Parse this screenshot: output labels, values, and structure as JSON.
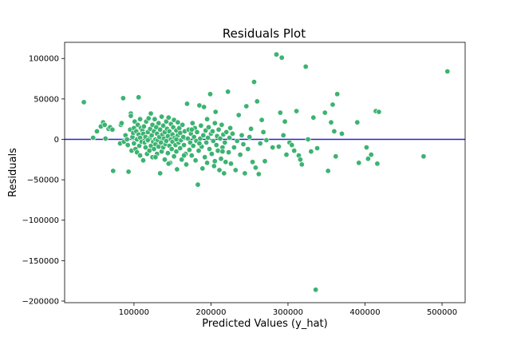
{
  "chart_data": {
    "type": "scatter",
    "title": "Residuals Plot",
    "xlabel": "Predicted Values (y_hat)",
    "ylabel": "Residuals",
    "xlim": [
      10000,
      530000
    ],
    "ylim": [
      -202000,
      120000
    ],
    "xticks": [
      100000,
      200000,
      300000,
      400000,
      500000
    ],
    "xtick_labels": [
      "100000",
      "200000",
      "300000",
      "400000",
      "500000"
    ],
    "yticks": [
      100000,
      50000,
      0,
      -50000,
      -100000,
      -150000,
      -200000
    ],
    "ytick_labels": [
      "100000",
      "50000",
      "0",
      "−50000",
      "−100000",
      "−150000",
      "−200000"
    ],
    "grid": false,
    "point_color": "#3cb371",
    "reference_line": {
      "y": 0,
      "color": "#2626c8"
    },
    "points": [
      [
        35000,
        46000
      ],
      [
        47000,
        2000
      ],
      [
        52000,
        10000
      ],
      [
        57000,
        16000
      ],
      [
        60000,
        21000
      ],
      [
        62000,
        18000
      ],
      [
        63000,
        1000
      ],
      [
        67000,
        13000
      ],
      [
        69000,
        15000
      ],
      [
        72000,
        12000
      ],
      [
        73000,
        -39000
      ],
      [
        82000,
        -5000
      ],
      [
        83000,
        18000
      ],
      [
        84000,
        20000
      ],
      [
        86000,
        51000
      ],
      [
        87000,
        -3000
      ],
      [
        89000,
        5000
      ],
      [
        91000,
        0
      ],
      [
        92000,
        -7000
      ],
      [
        93000,
        -40000
      ],
      [
        95000,
        12000
      ],
      [
        96000,
        32000
      ],
      [
        96000,
        29000
      ],
      [
        97000,
        -14000
      ],
      [
        98000,
        3000
      ],
      [
        99000,
        8000
      ],
      [
        100000,
        -5000
      ],
      [
        100000,
        14000
      ],
      [
        101000,
        22000
      ],
      [
        102000,
        -12000
      ],
      [
        103000,
        10000
      ],
      [
        104000,
        0
      ],
      [
        104000,
        -16000
      ],
      [
        105000,
        18000
      ],
      [
        106000,
        52000
      ],
      [
        106000,
        6000
      ],
      [
        107000,
        -8000
      ],
      [
        108000,
        2000
      ],
      [
        108000,
        -20000
      ],
      [
        109000,
        14000
      ],
      [
        110000,
        -3000
      ],
      [
        111000,
        11000
      ],
      [
        112000,
        -26000
      ],
      [
        112000,
        7000
      ],
      [
        113000,
        16000
      ],
      [
        114000,
        -4000
      ],
      [
        115000,
        -10000
      ],
      [
        115000,
        3000
      ],
      [
        116000,
        22000
      ],
      [
        117000,
        -18000
      ],
      [
        118000,
        9000
      ],
      [
        118000,
        -2000
      ],
      [
        119000,
        26000
      ],
      [
        120000,
        1000
      ],
      [
        120000,
        -14000
      ],
      [
        121000,
        13000
      ],
      [
        122000,
        -8000
      ],
      [
        122000,
        32000
      ],
      [
        123000,
        5000
      ],
      [
        124000,
        -22000
      ],
      [
        124000,
        18000
      ],
      [
        125000,
        -3000
      ],
      [
        126000,
        10000
      ],
      [
        126000,
        -12000
      ],
      [
        127000,
        25000
      ],
      [
        128000,
        0
      ],
      [
        128000,
        -6000
      ],
      [
        129000,
        15000
      ],
      [
        130000,
        -18000
      ],
      [
        130000,
        7000
      ],
      [
        131000,
        -1000
      ],
      [
        132000,
        20000
      ],
      [
        132000,
        -9000
      ],
      [
        133000,
        3000
      ],
      [
        134000,
        -42000
      ],
      [
        134000,
        12000
      ],
      [
        135000,
        -4000
      ],
      [
        136000,
        28000
      ],
      [
        136000,
        -15000
      ],
      [
        137000,
        6000
      ],
      [
        138000,
        -10000
      ],
      [
        138000,
        17000
      ],
      [
        139000,
        1000
      ],
      [
        140000,
        -25000
      ],
      [
        140000,
        9000
      ],
      [
        141000,
        -6000
      ],
      [
        142000,
        22000
      ],
      [
        142000,
        -2000
      ],
      [
        143000,
        13000
      ],
      [
        144000,
        -17000
      ],
      [
        144000,
        4000
      ],
      [
        145000,
        27000
      ],
      [
        146000,
        -8000
      ],
      [
        146000,
        10000
      ],
      [
        147000,
        -29000
      ],
      [
        148000,
        0
      ],
      [
        148000,
        19000
      ],
      [
        149000,
        -12000
      ],
      [
        150000,
        6000
      ],
      [
        150000,
        -3000
      ],
      [
        151000,
        15000
      ],
      [
        152000,
        -21000
      ],
      [
        152000,
        24000
      ],
      [
        153000,
        2000
      ],
      [
        154000,
        -7000
      ],
      [
        155000,
        11000
      ],
      [
        155000,
        -15000
      ],
      [
        156000,
        -37000
      ],
      [
        157000,
        5000
      ],
      [
        157000,
        21000
      ],
      [
        158000,
        -4000
      ],
      [
        159000,
        14000
      ],
      [
        160000,
        -11000
      ],
      [
        160000,
        8000
      ],
      [
        161000,
        -1000
      ],
      [
        162000,
        -25000
      ],
      [
        163000,
        18000
      ],
      [
        164000,
        3000
      ],
      [
        165000,
        -7000
      ],
      [
        166000,
        10000
      ],
      [
        167000,
        -18000
      ],
      [
        168000,
        -31000
      ],
      [
        169000,
        44000
      ],
      [
        170000,
        1000
      ],
      [
        171000,
        12000
      ],
      [
        172000,
        -13000
      ],
      [
        173000,
        -4000
      ],
      [
        174000,
        7000
      ],
      [
        175000,
        -20000
      ],
      [
        176000,
        20000
      ],
      [
        177000,
        -8000
      ],
      [
        178000,
        3000
      ],
      [
        179000,
        14000
      ],
      [
        180000,
        -26000
      ],
      [
        181000,
        -2000
      ],
      [
        182000,
        9000
      ],
      [
        183000,
        -56000
      ],
      [
        184000,
        -14000
      ],
      [
        185000,
        42000
      ],
      [
        186000,
        1000
      ],
      [
        187000,
        17000
      ],
      [
        188000,
        -9000
      ],
      [
        189000,
        -36000
      ],
      [
        190000,
        5000
      ],
      [
        191000,
        40000
      ],
      [
        192000,
        -22000
      ],
      [
        193000,
        11000
      ],
      [
        194000,
        -4000
      ],
      [
        195000,
        -29000
      ],
      [
        196000,
        2000
      ],
      [
        197000,
        15000
      ],
      [
        198000,
        -12000
      ],
      [
        199000,
        56000
      ],
      [
        200000,
        7000
      ],
      [
        201000,
        -18000
      ],
      [
        202000,
        10000
      ],
      [
        203000,
        -2000
      ],
      [
        204000,
        -33000
      ],
      [
        205000,
        20000
      ],
      [
        206000,
        34000
      ],
      [
        207000,
        -7000
      ],
      [
        208000,
        4000
      ],
      [
        209000,
        -14000
      ],
      [
        210000,
        12000
      ],
      [
        211000,
        -38000
      ],
      [
        212000,
        1000
      ],
      [
        213000,
        -24000
      ],
      [
        214000,
        18000
      ],
      [
        215000,
        -10000
      ],
      [
        216000,
        6000
      ],
      [
        217000,
        -42000
      ],
      [
        218000,
        -4000
      ],
      [
        219000,
        -28000
      ],
      [
        220000,
        9000
      ],
      [
        222000,
        59000
      ],
      [
        223000,
        -16000
      ],
      [
        224000,
        2000
      ],
      [
        226000,
        -30000
      ],
      [
        228000,
        7000
      ],
      [
        230000,
        -10000
      ],
      [
        232000,
        -38000
      ],
      [
        234000,
        -2000
      ],
      [
        236000,
        30000
      ],
      [
        238000,
        -19000
      ],
      [
        240000,
        5000
      ],
      [
        242000,
        -6000
      ],
      [
        244000,
        -42000
      ],
      [
        246000,
        41000
      ],
      [
        248000,
        -12000
      ],
      [
        250000,
        3000
      ],
      [
        252000,
        13000
      ],
      [
        254000,
        -28000
      ],
      [
        256000,
        71000
      ],
      [
        258000,
        -35000
      ],
      [
        260000,
        47000
      ],
      [
        262000,
        -43000
      ],
      [
        264000,
        -5000
      ],
      [
        266000,
        24000
      ],
      [
        268000,
        9000
      ],
      [
        270000,
        -27000
      ],
      [
        272000,
        -1000
      ],
      [
        280000,
        -10000
      ],
      [
        285000,
        105000
      ],
      [
        288000,
        -9000
      ],
      [
        290000,
        33000
      ],
      [
        292000,
        101000
      ],
      [
        294000,
        5000
      ],
      [
        296000,
        22000
      ],
      [
        298000,
        -19000
      ],
      [
        302000,
        -4000
      ],
      [
        305000,
        -7000
      ],
      [
        308000,
        -14000
      ],
      [
        311000,
        35000
      ],
      [
        314000,
        -20000
      ],
      [
        316000,
        -25000
      ],
      [
        318000,
        -31000
      ],
      [
        323000,
        90000
      ],
      [
        326000,
        0
      ],
      [
        330000,
        -15000
      ],
      [
        333000,
        27000
      ],
      [
        336000,
        -186000
      ],
      [
        338000,
        -11000
      ],
      [
        348000,
        33000
      ],
      [
        352000,
        -39000
      ],
      [
        356000,
        21000
      ],
      [
        358000,
        43000
      ],
      [
        360000,
        10000
      ],
      [
        362000,
        -21000
      ],
      [
        364000,
        56000
      ],
      [
        370000,
        7000
      ],
      [
        390000,
        21000
      ],
      [
        392000,
        -29000
      ],
      [
        402000,
        -10000
      ],
      [
        404000,
        -24000
      ],
      [
        408000,
        -19000
      ],
      [
        414000,
        35000
      ],
      [
        418000,
        34000
      ],
      [
        416000,
        -30000
      ],
      [
        476000,
        -21000
      ],
      [
        507000,
        84000
      ],
      [
        155000,
        0
      ],
      [
        165000,
        -20000
      ],
      [
        175000,
        12000
      ],
      [
        185000,
        -5000
      ],
      [
        195000,
        25000
      ],
      [
        205000,
        -27000
      ],
      [
        215000,
        -15000
      ],
      [
        225000,
        14000
      ],
      [
        145000,
        -30000
      ],
      [
        128000,
        -22000
      ],
      [
        118000,
        -1000
      ],
      [
        108000,
        25000
      ]
    ]
  }
}
